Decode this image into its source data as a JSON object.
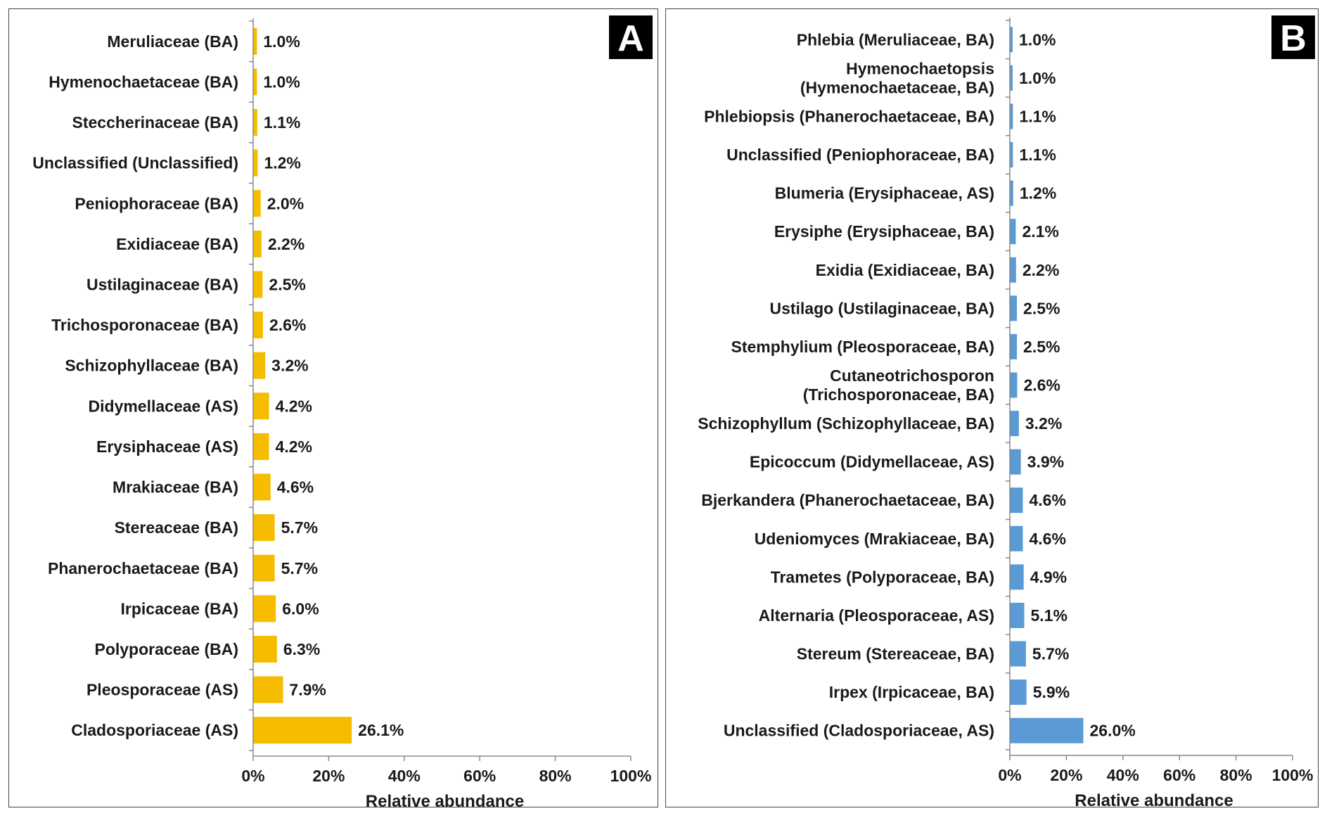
{
  "chart_data": [
    {
      "type": "bar",
      "orientation": "horizontal",
      "panel_label": "A",
      "xlabel": "Relative abundance",
      "xlim": [
        0,
        100
      ],
      "xticks": [
        "0%",
        "20%",
        "40%",
        "60%",
        "80%",
        "100%"
      ],
      "bar_color": "#F5BC00",
      "categories": [
        "Meruliaceae (BA)",
        "Hymenochaetaceae (BA)",
        "Steccherinaceae (BA)",
        "Unclassified (Unclassified)",
        "Peniophoraceae (BA)",
        "Exidiaceae (BA)",
        "Ustilaginaceae (BA)",
        "Trichosporonaceae (BA)",
        "Schizophyllaceae (BA)",
        "Didymellaceae (AS)",
        "Erysiphaceae (AS)",
        "Mrakiaceae (BA)",
        "Stereaceae (BA)",
        "Phanerochaetaceae (BA)",
        "Irpicaceae (BA)",
        "Polyporaceae (BA)",
        "Pleosporaceae (AS)",
        "Cladosporiaceae (AS)"
      ],
      "values": [
        1.0,
        1.0,
        1.1,
        1.2,
        2.0,
        2.2,
        2.5,
        2.6,
        3.2,
        4.2,
        4.2,
        4.6,
        5.7,
        5.7,
        6.0,
        6.3,
        7.9,
        26.1
      ],
      "value_labels": [
        "1.0%",
        "1.0%",
        "1.1%",
        "1.2%",
        "2.0%",
        "2.2%",
        "2.5%",
        "2.6%",
        "3.2%",
        "4.2%",
        "4.2%",
        "4.6%",
        "5.7%",
        "5.7%",
        "6.0%",
        "6.3%",
        "7.9%",
        "26.1%"
      ]
    },
    {
      "type": "bar",
      "orientation": "horizontal",
      "panel_label": "B",
      "xlabel": "Relative abundance",
      "xlim": [
        0,
        100
      ],
      "xticks": [
        "0%",
        "20%",
        "40%",
        "60%",
        "80%",
        "100%"
      ],
      "bar_color": "#5B9BD5",
      "categories": [
        [
          "Phlebia (Meruliaceae, BA)"
        ],
        [
          "Hymenochaetopsis",
          "(Hymenochaetaceae, BA)"
        ],
        [
          "Phlebiopsis (Phanerochaetaceae, BA)"
        ],
        [
          "Unclassified (Peniophoraceae, BA)"
        ],
        [
          "Blumeria (Erysiphaceae, AS)"
        ],
        [
          "Erysiphe (Erysiphaceae, BA)"
        ],
        [
          "Exidia (Exidiaceae, BA)"
        ],
        [
          "Ustilago (Ustilaginaceae, BA)"
        ],
        [
          "Stemphylium (Pleosporaceae, BA)"
        ],
        [
          "Cutaneotrichosporon",
          "(Trichosporonaceae, BA)"
        ],
        [
          "Schizophyllum (Schizophyllaceae, BA)"
        ],
        [
          "Epicoccum (Didymellaceae, AS)"
        ],
        [
          "Bjerkandera (Phanerochaetaceae, BA)"
        ],
        [
          "Udeniomyces (Mrakiaceae, BA)"
        ],
        [
          "Trametes (Polyporaceae, BA)"
        ],
        [
          "Alternaria (Pleosporaceae, AS)"
        ],
        [
          "Stereum (Stereaceae, BA)"
        ],
        [
          "Irpex (Irpicaceae, BA)"
        ],
        [
          "Unclassified (Cladosporiaceae, AS)"
        ]
      ],
      "values": [
        1.0,
        1.0,
        1.1,
        1.1,
        1.2,
        2.1,
        2.2,
        2.5,
        2.5,
        2.6,
        3.2,
        3.9,
        4.6,
        4.6,
        4.9,
        5.1,
        5.7,
        5.9,
        26.0
      ],
      "value_labels": [
        "1.0%",
        "1.0%",
        "1.1%",
        "1.1%",
        "1.2%",
        "2.1%",
        "2.2%",
        "2.5%",
        "2.5%",
        "2.6%",
        "3.2%",
        "3.9%",
        "4.6%",
        "4.6%",
        "4.9%",
        "5.1%",
        "5.7%",
        "5.9%",
        "26.0%"
      ]
    }
  ]
}
